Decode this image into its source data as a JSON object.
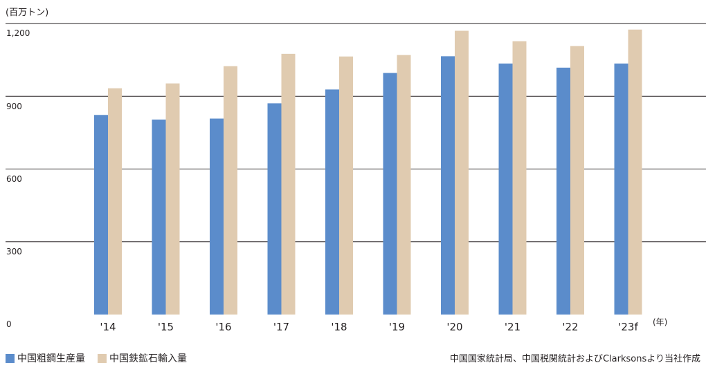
{
  "chart_data": {
    "type": "bar",
    "unit_label": "(百万トン)",
    "x_unit_label": "(年)",
    "categories": [
      "'14",
      "'15",
      "'16",
      "'17",
      "'18",
      "'19",
      "'20",
      "'21",
      "'22",
      "'23f"
    ],
    "series": [
      {
        "name": "中国粗鋼生産量",
        "color": "#5b8ccb",
        "values": [
          823,
          804,
          808,
          871,
          928,
          996,
          1065,
          1035,
          1018,
          1035
        ]
      },
      {
        "name": "中国鉄鉱石輸入量",
        "color": "#e0cbb0",
        "values": [
          933,
          953,
          1024,
          1075,
          1064,
          1070,
          1170,
          1127,
          1107,
          1175
        ]
      }
    ],
    "yticks": [
      "0",
      "300",
      "600",
      "900",
      "1,200"
    ],
    "ylim": [
      0,
      1200
    ],
    "grid": true,
    "legend_position": "bottom-left",
    "source": "中国国家統計局、中国税関統計およびClarksonsより当社作成"
  }
}
